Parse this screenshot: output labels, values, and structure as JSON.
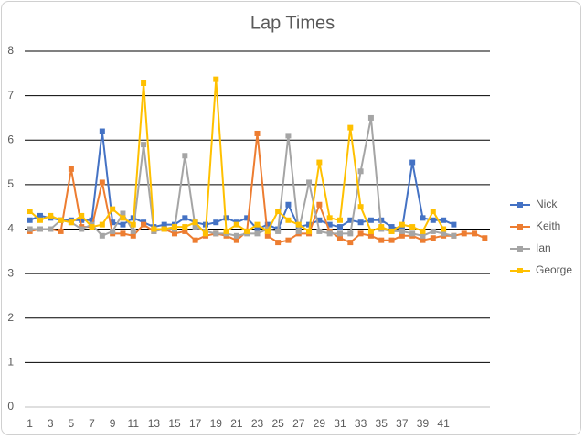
{
  "chart_data": {
    "type": "line",
    "title": "Lap Times",
    "categories": [
      1,
      null,
      3,
      null,
      5,
      null,
      7,
      null,
      9,
      null,
      11,
      null,
      13,
      null,
      15,
      null,
      17,
      null,
      19,
      null,
      21,
      null,
      23,
      null,
      25,
      null,
      27,
      null,
      29,
      null,
      31,
      null,
      33,
      null,
      35,
      null,
      37,
      null,
      39,
      null,
      41,
      null,
      null,
      null,
      null
    ],
    "series": [
      {
        "name": "Nick",
        "color": "#4472c4",
        "values": [
          4.2,
          4.3,
          4.25,
          4.2,
          4.2,
          4.2,
          4.2,
          6.2,
          4.15,
          4.1,
          4.25,
          4.15,
          4.05,
          4.1,
          4.1,
          4.25,
          4.15,
          4.1,
          4.15,
          4.25,
          4.15,
          4.25,
          4.0,
          4.1,
          4.0,
          4.55,
          4.05,
          4.1,
          4.2,
          4.1,
          4.05,
          4.2,
          4.15,
          4.2,
          4.2,
          4.05,
          4.0,
          5.5,
          4.25,
          4.2,
          4.2,
          4.1,
          null,
          null,
          null
        ]
      },
      {
        "name": "Keith",
        "color": "#ed7d31",
        "values": [
          3.95,
          4.0,
          4.0,
          3.95,
          5.35,
          4.05,
          4.05,
          5.05,
          3.9,
          3.9,
          3.85,
          4.1,
          3.95,
          4.0,
          3.9,
          3.95,
          3.75,
          3.85,
          3.9,
          3.85,
          3.75,
          3.95,
          6.15,
          3.85,
          3.7,
          3.75,
          3.9,
          3.9,
          4.55,
          3.95,
          3.8,
          3.7,
          3.9,
          3.85,
          3.75,
          3.75,
          3.85,
          3.85,
          3.75,
          3.8,
          3.85,
          3.85,
          3.9,
          3.9,
          3.8
        ]
      },
      {
        "name": "Ian",
        "color": "#a5a5a5",
        "values": [
          4.0,
          4.0,
          4.0,
          4.2,
          4.15,
          4.0,
          4.1,
          3.85,
          3.95,
          4.35,
          3.95,
          5.9,
          3.95,
          4.0,
          4.0,
          5.65,
          4.05,
          3.95,
          3.9,
          3.9,
          3.85,
          3.9,
          3.9,
          4.0,
          3.95,
          6.1,
          3.95,
          5.05,
          3.95,
          3.9,
          3.9,
          3.9,
          5.3,
          6.5,
          4.0,
          3.95,
          3.95,
          3.9,
          3.85,
          3.95,
          3.9,
          3.85,
          null,
          null,
          null
        ]
      },
      {
        "name": "George",
        "color": "#ffc000",
        "values": [
          4.4,
          4.2,
          4.3,
          4.2,
          4.15,
          4.3,
          4.05,
          4.1,
          4.45,
          4.25,
          4.1,
          7.28,
          4.0,
          4.0,
          4.05,
          4.05,
          4.15,
          3.9,
          7.37,
          3.95,
          4.1,
          3.95,
          4.1,
          3.95,
          4.4,
          4.2,
          4.1,
          3.95,
          5.5,
          4.25,
          4.2,
          6.28,
          4.5,
          3.95,
          4.05,
          3.95,
          4.1,
          4.05,
          3.95,
          4.4,
          4.0,
          null,
          null,
          null,
          null
        ]
      }
    ],
    "ylim": [
      0,
      8
    ],
    "yticks": [
      0,
      1,
      2,
      3,
      4,
      5,
      6,
      7,
      8
    ],
    "grid": true,
    "legend": "right"
  }
}
